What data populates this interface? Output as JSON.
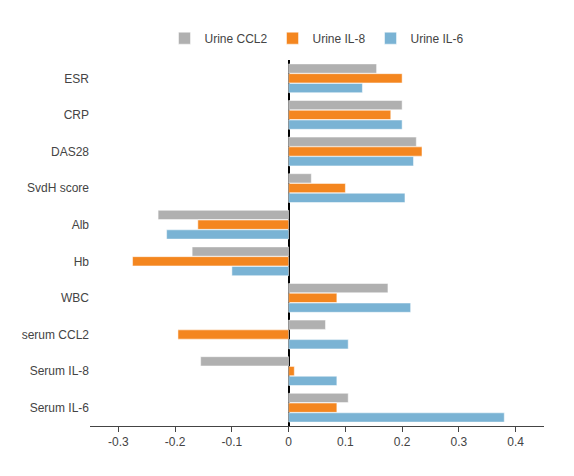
{
  "chart_data": {
    "type": "bar",
    "orientation": "horizontal",
    "categories": [
      "ESR",
      "CRP",
      "DAS28",
      "SvdH score",
      "Alb",
      "Hb",
      "WBC",
      "serum CCL2",
      "Serum IL-8",
      "Serum IL-6"
    ],
    "series": [
      {
        "name": "Urine CCL2",
        "color": "#b0b0b0",
        "values": [
          0.155,
          0.2,
          0.225,
          0.04,
          -0.23,
          -0.17,
          0.175,
          0.065,
          -0.155,
          0.105
        ]
      },
      {
        "name": "Urine IL-8",
        "color": "#f4861f",
        "values": [
          0.2,
          0.18,
          0.235,
          0.1,
          -0.16,
          -0.275,
          0.085,
          -0.195,
          0.01,
          0.085
        ]
      },
      {
        "name": "Urine IL-6",
        "color": "#7ab3d4",
        "values": [
          0.13,
          0.2,
          0.22,
          0.205,
          -0.215,
          -0.1,
          0.215,
          0.105,
          0.085,
          0.38
        ]
      }
    ],
    "xlim": [
      -0.35,
      0.45
    ],
    "xticks": [
      -0.3,
      -0.2,
      -0.1,
      0,
      0.1,
      0.2,
      0.3,
      0.4
    ],
    "grid": false,
    "legend": "top"
  }
}
